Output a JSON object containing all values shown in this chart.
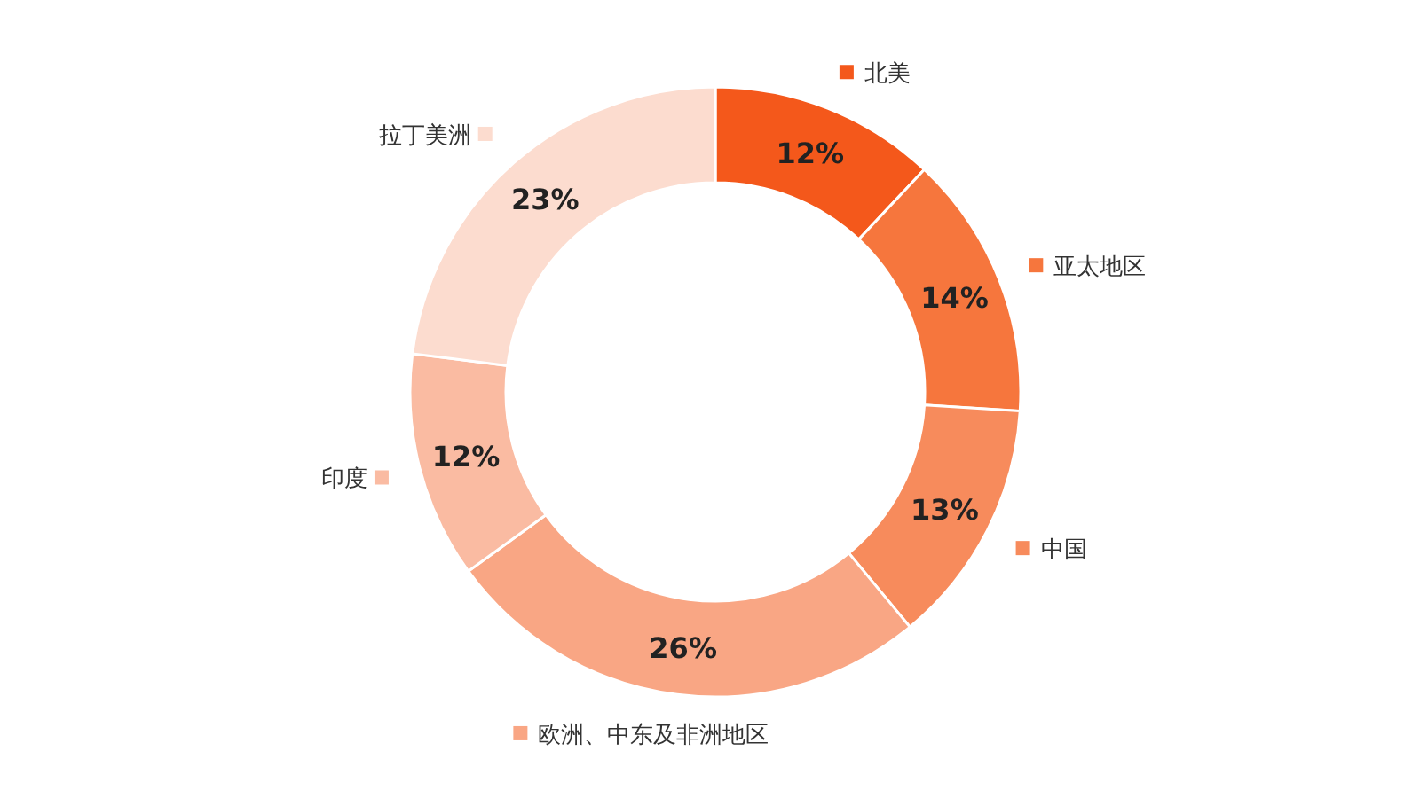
{
  "chart_data": {
    "type": "donut",
    "categories": [
      "北美",
      "亚太地区",
      "中国",
      "欧洲、中东及非洲地区",
      "印度",
      "拉丁美洲"
    ],
    "values": [
      12,
      14,
      13,
      26,
      12,
      23
    ],
    "value_labels": [
      "12%",
      "14%",
      "13%",
      "26%",
      "12%",
      "23%"
    ],
    "colors": [
      "#f4581b",
      "#f6763d",
      "#f78b5c",
      "#f9a684",
      "#fabba2",
      "#fcdccf"
    ],
    "legend": "right"
  }
}
